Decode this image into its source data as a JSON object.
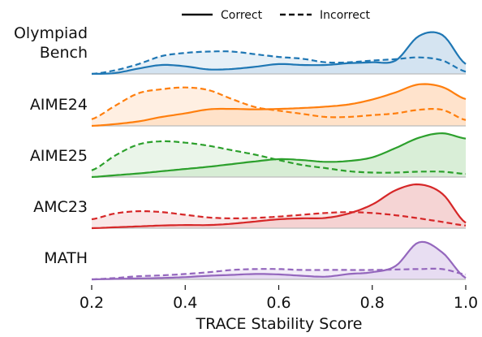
{
  "chart_data": {
    "type": "area",
    "xlabel": "TRACE Stability Score",
    "xlim": [
      0.2,
      1.0
    ],
    "xticks": [
      "0.2",
      "0.4",
      "0.6",
      "0.8",
      "1.0"
    ],
    "legend": {
      "placement": "top-center",
      "entries": [
        {
          "label": "Correct",
          "style": "solid"
        },
        {
          "label": "Incorrect",
          "style": "dashed"
        }
      ]
    },
    "x": [
      0.2,
      0.25,
      0.3,
      0.35,
      0.4,
      0.45,
      0.5,
      0.55,
      0.6,
      0.65,
      0.7,
      0.75,
      0.8,
      0.85,
      0.9,
      0.95,
      1.0
    ],
    "rows": [
      {
        "label_lines": [
          "Olympiad",
          "Bench"
        ],
        "color": "#1f77b4",
        "fill": "#d0e1ef",
        "correct": [
          0.0,
          0.02,
          0.12,
          0.2,
          0.17,
          0.1,
          0.11,
          0.16,
          0.22,
          0.2,
          0.2,
          0.24,
          0.26,
          0.3,
          0.85,
          0.87,
          0.22
        ],
        "incorrect": [
          0.0,
          0.08,
          0.22,
          0.4,
          0.47,
          0.5,
          0.5,
          0.44,
          0.38,
          0.34,
          0.26,
          0.26,
          0.3,
          0.33,
          0.37,
          0.3,
          0.05
        ]
      },
      {
        "label_lines": [
          "AIME24"
        ],
        "color": "#ff7f0e",
        "fill": "#ffe0c6",
        "correct": [
          0.0,
          0.04,
          0.1,
          0.2,
          0.28,
          0.37,
          0.38,
          0.37,
          0.38,
          0.4,
          0.43,
          0.48,
          0.59,
          0.75,
          0.93,
          0.87,
          0.6
        ],
        "incorrect": [
          0.15,
          0.45,
          0.73,
          0.82,
          0.86,
          0.8,
          0.6,
          0.42,
          0.34,
          0.27,
          0.2,
          0.2,
          0.24,
          0.28,
          0.36,
          0.36,
          0.13
        ]
      },
      {
        "label_lines": [
          "AIME25"
        ],
        "color": "#2ca02c",
        "fill": "#d5ecd3",
        "correct": [
          0.0,
          0.04,
          0.08,
          0.13,
          0.18,
          0.23,
          0.29,
          0.35,
          0.4,
          0.38,
          0.34,
          0.36,
          0.44,
          0.65,
          0.88,
          0.98,
          0.86
        ],
        "incorrect": [
          0.15,
          0.48,
          0.73,
          0.8,
          0.77,
          0.7,
          0.6,
          0.5,
          0.38,
          0.27,
          0.2,
          0.13,
          0.1,
          0.1,
          0.12,
          0.12,
          0.07
        ]
      },
      {
        "label_lines": [
          "AMC23"
        ],
        "color": "#d62728",
        "fill": "#f4cfcf",
        "correct": [
          0.0,
          0.02,
          0.04,
          0.06,
          0.07,
          0.07,
          0.1,
          0.15,
          0.2,
          0.22,
          0.23,
          0.33,
          0.53,
          0.85,
          0.98,
          0.77,
          0.12
        ],
        "incorrect": [
          0.2,
          0.33,
          0.38,
          0.36,
          0.3,
          0.24,
          0.22,
          0.23,
          0.26,
          0.3,
          0.34,
          0.36,
          0.34,
          0.29,
          0.22,
          0.14,
          0.06
        ]
      },
      {
        "label_lines": [
          "MATH"
        ],
        "color": "#9467bd",
        "fill": "#e5daf1",
        "correct": [
          0.0,
          0.01,
          0.02,
          0.03,
          0.05,
          0.08,
          0.1,
          0.12,
          0.11,
          0.08,
          0.06,
          0.12,
          0.16,
          0.3,
          0.83,
          0.6,
          0.03
        ],
        "incorrect": [
          0.0,
          0.03,
          0.07,
          0.09,
          0.12,
          0.16,
          0.21,
          0.23,
          0.23,
          0.21,
          0.21,
          0.21,
          0.21,
          0.22,
          0.23,
          0.23,
          0.11
        ]
      }
    ]
  }
}
